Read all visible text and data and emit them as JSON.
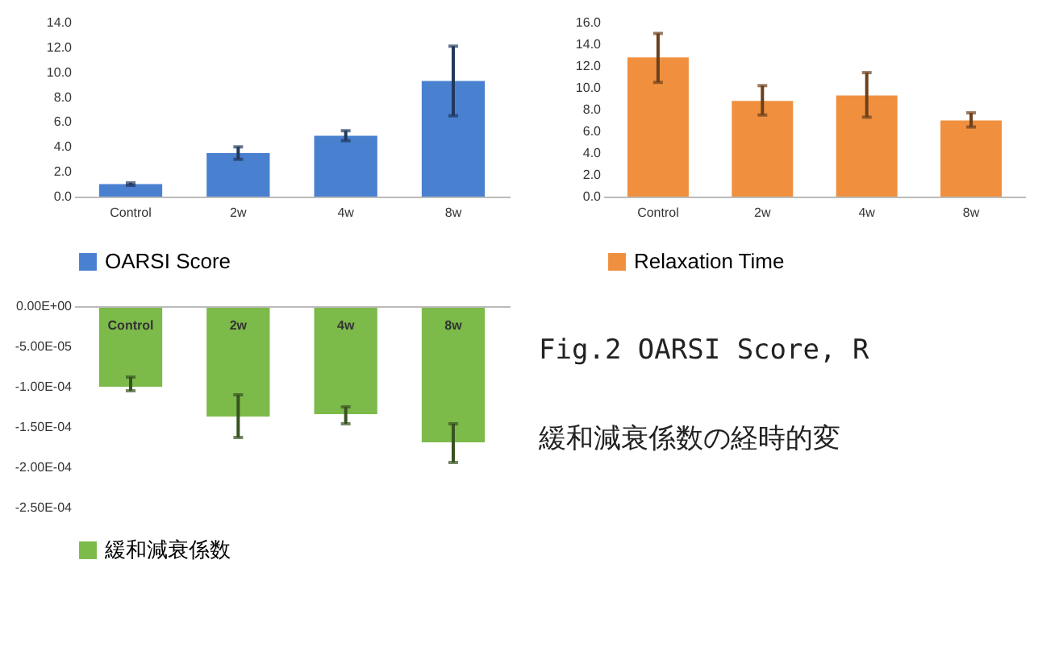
{
  "chart_data": [
    {
      "type": "bar",
      "categories": [
        "Control",
        "2w",
        "4w",
        "8w"
      ],
      "series": [
        {
          "name": "OARSI Score",
          "color": "#4a80d0",
          "values": [
            1.0,
            3.5,
            4.9,
            9.3
          ],
          "errors": [
            [
              0.9,
              1.1
            ],
            [
              3.0,
              4.0
            ],
            [
              4.5,
              5.3
            ],
            [
              6.5,
              12.1
            ]
          ]
        }
      ],
      "ylim": [
        0,
        14
      ],
      "yticks": [
        {
          "value": 0,
          "label": "0.0"
        },
        {
          "value": 2,
          "label": "2.0"
        },
        {
          "value": 4,
          "label": "4.0"
        },
        {
          "value": 6,
          "label": "6.0"
        },
        {
          "value": 8,
          "label": "8.0"
        },
        {
          "value": 10,
          "label": "10.0"
        },
        {
          "value": 12,
          "label": "12.0"
        },
        {
          "value": 14,
          "label": "14.0"
        }
      ],
      "grid": false,
      "legend": "bottom"
    },
    {
      "type": "bar",
      "categories": [
        "Control",
        "2w",
        "4w",
        "8w"
      ],
      "series": [
        {
          "name": "Relaxation Time",
          "color": "#f0903f",
          "values": [
            12.8,
            8.8,
            9.3,
            7.0
          ],
          "errors": [
            [
              10.5,
              15.0
            ],
            [
              7.5,
              10.2
            ],
            [
              7.3,
              11.4
            ],
            [
              6.4,
              7.7
            ]
          ]
        }
      ],
      "ylim": [
        0,
        16
      ],
      "yticks": [
        {
          "value": 0,
          "label": "0.0"
        },
        {
          "value": 2,
          "label": "2.0"
        },
        {
          "value": 4,
          "label": "4.0"
        },
        {
          "value": 6,
          "label": "6.0"
        },
        {
          "value": 8,
          "label": "8.0"
        },
        {
          "value": 10,
          "label": "10.0"
        },
        {
          "value": 12,
          "label": "12.0"
        },
        {
          "value": 14,
          "label": "14.0"
        },
        {
          "value": 16,
          "label": "16.0"
        }
      ],
      "grid": false,
      "legend": "bottom"
    },
    {
      "type": "bar",
      "categories": [
        "Control",
        "2w",
        "4w",
        "8w"
      ],
      "series": [
        {
          "name": "緩和減衰係数",
          "color": "#7cba4a",
          "values": [
            -0.0001,
            -0.000137,
            -0.000134,
            -0.000169
          ],
          "errors": [
            [
              -0.000105,
              -8.8e-05
            ],
            [
              -0.000163,
              -0.00011
            ],
            [
              -0.000146,
              -0.000125
            ],
            [
              -0.000194,
              -0.000146
            ]
          ]
        }
      ],
      "ylim": [
        -0.00025,
        0
      ],
      "yticks": [
        {
          "value": -0.00025,
          "label": "-2.50E-04"
        },
        {
          "value": -0.0002,
          "label": "-2.00E-04"
        },
        {
          "value": -0.00015,
          "label": "-1.50E-04"
        },
        {
          "value": -0.0001,
          "label": "-1.00E-04"
        },
        {
          "value": -5e-05,
          "label": "-5.00E-05"
        },
        {
          "value": 0,
          "label": "0.00E+00"
        }
      ],
      "grid": false,
      "legend": "bottom"
    },
    {
      "type": "other",
      "annotations": [
        "Fig.2 OARSI Score, R",
        "緩和減衰係数の経時的変"
      ]
    }
  ]
}
